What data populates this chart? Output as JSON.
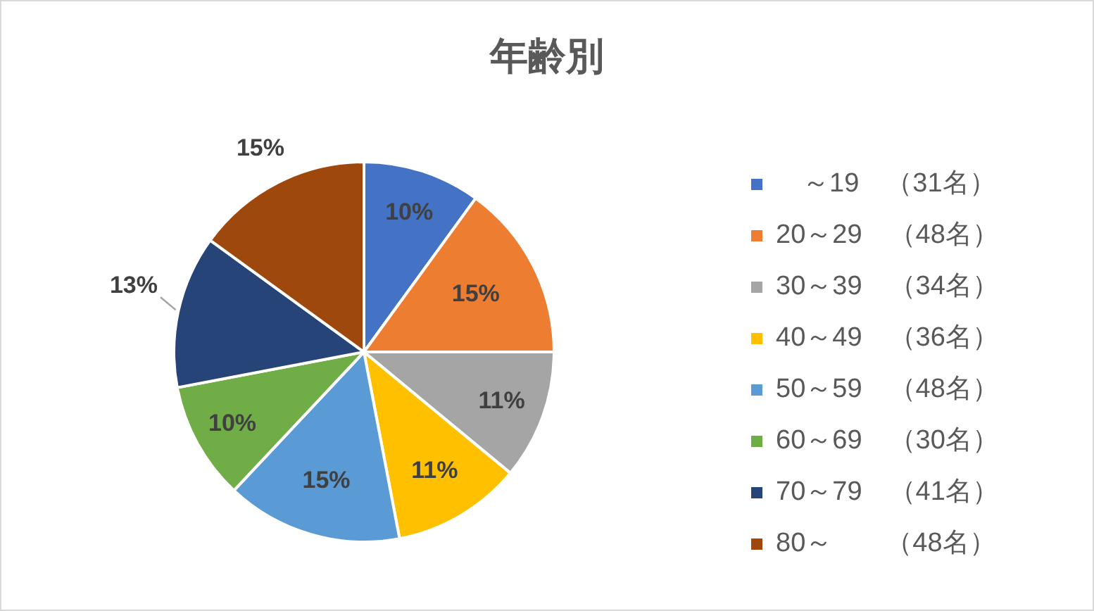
{
  "chart_data": {
    "type": "pie",
    "title": "年齢別",
    "categories": [
      "　～19　（31名）",
      "20～29　（48名）",
      "30～39　（34名）",
      "40～49　（36名）",
      "50～59　（48名）",
      "60～69　（30名）",
      "70～79　（41名）",
      "80～　　（48名）"
    ],
    "values": [
      10,
      15,
      11,
      11,
      15,
      10,
      13,
      15
    ],
    "colors": [
      "#4472c4",
      "#ed7d31",
      "#a5a5a5",
      "#ffc000",
      "#5b9bd5",
      "#70ad47",
      "#264478",
      "#9e480e"
    ],
    "value_labels": [
      "10%",
      "15%",
      "11%",
      "11%",
      "15%",
      "10%",
      "13%",
      "15%"
    ],
    "legend": "right"
  }
}
